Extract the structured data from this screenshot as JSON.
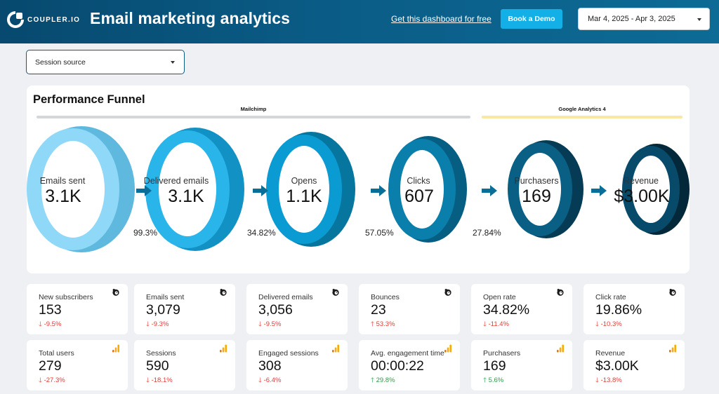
{
  "header": {
    "logo_text": "COUPLER.IO",
    "title": "Email marketing analytics",
    "free_link": "Get this dashboard for free",
    "demo_button": "Book a Demo",
    "date_range": "Mar 4, 2025 - Apr 3, 2025"
  },
  "filters": {
    "session_source": "Session source"
  },
  "funnel": {
    "title": "Performance Funnel",
    "sources": [
      {
        "label": "Mailchimp",
        "color": "#d4d6da"
      },
      {
        "label": "Google Analytics 4",
        "color": "#fbe6a2"
      }
    ],
    "stages": [
      {
        "label": "Emails sent",
        "value": "3.1K",
        "color": "#8fd8f7"
      },
      {
        "label": "Delivered emails",
        "value": "3.1K",
        "color": "#29b4ea"
      },
      {
        "label": "Opens",
        "value": "1.1K",
        "color": "#0a9bd3"
      },
      {
        "label": "Clicks",
        "value": "607",
        "color": "#0b7fac"
      },
      {
        "label": "Purchasers",
        "value": "169",
        "color": "#0a5f84"
      },
      {
        "label": "Revenue",
        "value": "$3.00K",
        "color": "#084a69"
      }
    ],
    "conversion_rates": [
      "99.3%",
      "34.82%",
      "57.05%",
      "27.84%"
    ]
  },
  "kpis": [
    {
      "label": "New subscribers",
      "value": "153",
      "delta": "-9.5%",
      "dir": "down",
      "icon": "mailchimp-icon"
    },
    {
      "label": "Emails sent",
      "value": "3,079",
      "delta": "-9.3%",
      "dir": "down",
      "icon": "mailchimp-icon"
    },
    {
      "label": "Delivered emails",
      "value": "3,056",
      "delta": "-9.5%",
      "dir": "down",
      "icon": "mailchimp-icon"
    },
    {
      "label": "Bounces",
      "value": "23",
      "delta": "53.3%",
      "dir": "up-bad",
      "icon": "mailchimp-icon"
    },
    {
      "label": "Open rate",
      "value": "34.82%",
      "delta": "-11.4%",
      "dir": "down",
      "icon": "mailchimp-icon"
    },
    {
      "label": "Click rate",
      "value": "19.86%",
      "delta": "-10.3%",
      "dir": "down",
      "icon": "mailchimp-icon"
    },
    {
      "label": "Total users",
      "value": "279",
      "delta": "-27.3%",
      "dir": "down",
      "icon": "google-analytics-icon"
    },
    {
      "label": "Sessions",
      "value": "590",
      "delta": "-18.1%",
      "dir": "down",
      "icon": "google-analytics-icon"
    },
    {
      "label": "Engaged sessions",
      "value": "308",
      "delta": "-6.4%",
      "dir": "down",
      "icon": "google-analytics-icon"
    },
    {
      "label": "Avg. engagement time",
      "value": "00:00:22",
      "delta": "29.8%",
      "dir": "up-good",
      "icon": "google-analytics-icon"
    },
    {
      "label": "Purchasers",
      "value": "169",
      "delta": "5.6%",
      "dir": "up-good",
      "icon": "google-analytics-icon"
    },
    {
      "label": "Revenue",
      "value": "$3.00K",
      "delta": "-13.8%",
      "dir": "down",
      "icon": "google-analytics-icon"
    }
  ],
  "colors": {
    "header_start": "#07496f",
    "accent": "#12b0e6",
    "negative": "#e53935",
    "positive": "#2e9a48",
    "ga_orange": "#f9a825"
  }
}
